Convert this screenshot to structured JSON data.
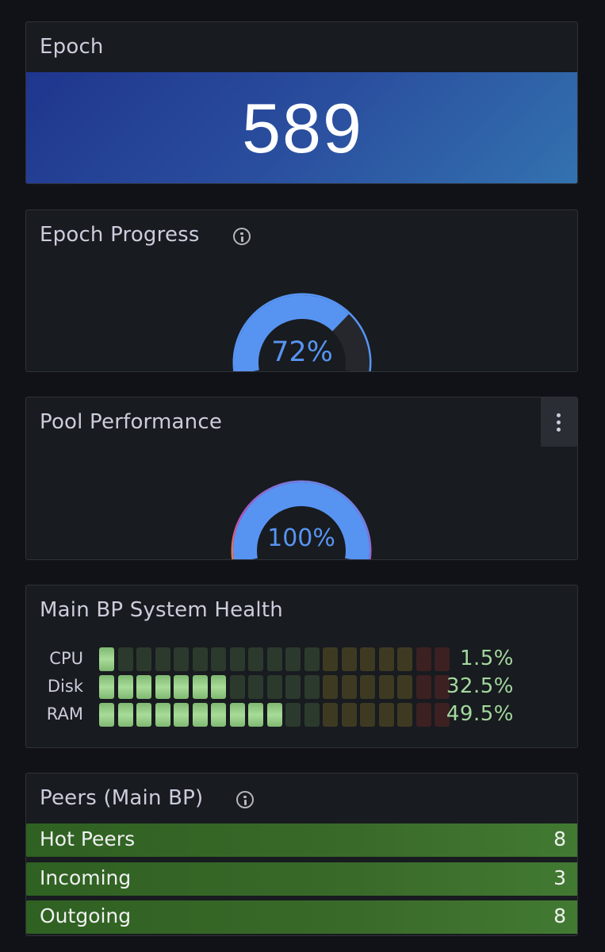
{
  "panels": {
    "epoch": {
      "title": "Epoch",
      "value": "589",
      "colors": {
        "gradient_start": "#1f368e",
        "gradient_end": "#3372b0"
      }
    },
    "epoch_progress": {
      "title": "Epoch Progress",
      "value_label": "72%",
      "value": 72,
      "max": 100,
      "color": "#5794f2"
    },
    "pool_performance": {
      "title": "Pool Performance",
      "value_label": "100%",
      "value": 100,
      "max": 100,
      "color": "#5794f2"
    },
    "system_health": {
      "title": "Main BP System Health",
      "rows": [
        {
          "label": "CPU",
          "value_label": "1.5%",
          "value": 1.5
        },
        {
          "label": "Disk",
          "value_label": "32.5%",
          "value": 32.5
        },
        {
          "label": "RAM",
          "value_label": "49.5%",
          "value": 49.5
        }
      ],
      "colors": {
        "ok": "#9fd28c",
        "warn": "#8a7a2a",
        "crit": "#7a1f24"
      }
    },
    "peers": {
      "title": "Peers (Main BP)",
      "rows": [
        {
          "name": "Hot Peers",
          "count": "8"
        },
        {
          "name": "Incoming",
          "count": "3"
        },
        {
          "name": "Outgoing",
          "count": "8"
        }
      ],
      "color": "#3a6a2a"
    }
  },
  "icons": [
    "info-icon",
    "kebab-menu-icon"
  ]
}
